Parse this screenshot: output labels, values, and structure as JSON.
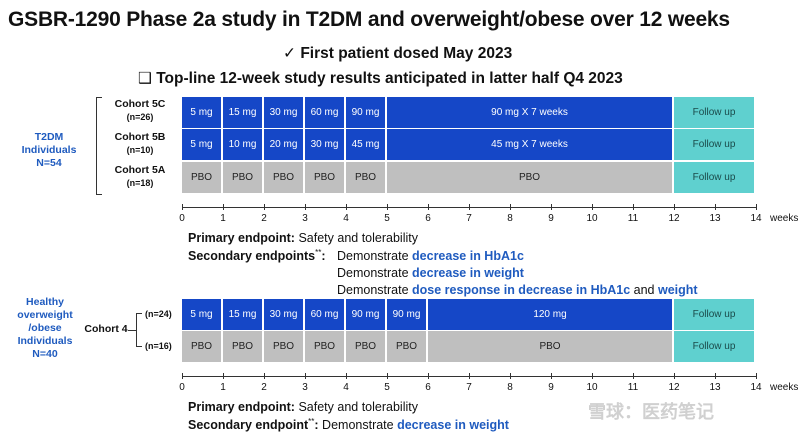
{
  "title": "GSBR-1290 Phase 2a study in T2DM and overweight/obese over 12 weeks",
  "bullet1": {
    "mark": "✓",
    "text": "First patient dosed May 2023"
  },
  "bullet2": {
    "mark": "❑",
    "text": "Top-line 12-week study results anticipated in latter half Q4 2023"
  },
  "t2dm": {
    "label": "T2DM Individuals N=54",
    "cohorts": [
      {
        "name": "Cohort 5C",
        "n": "(n=26)",
        "cells": [
          "5 mg",
          "15 mg",
          "30 mg",
          "60 mg",
          "90 mg",
          "90 mg X 7 weeks",
          "Follow up"
        ]
      },
      {
        "name": "Cohort 5B",
        "n": "(n=10)",
        "cells": [
          "5 mg",
          "10 mg",
          "20 mg",
          "30 mg",
          "45 mg",
          "45 mg X 7 weeks",
          "Follow up"
        ]
      },
      {
        "name": "Cohort 5A",
        "n": "(n=18)",
        "cells": [
          "PBO",
          "PBO",
          "PBO",
          "PBO",
          "PBO",
          "PBO",
          "Follow up"
        ]
      }
    ],
    "primary_label": "Primary endpoint:",
    "primary_text": "Safety and tolerability",
    "secondary_label": "Secondary endpoints",
    "secondary_mark": "**",
    "secondary_items": [
      {
        "prefix": "Demonstrate ",
        "highlight": "decrease in HbA1c"
      },
      {
        "prefix": "Demonstrate ",
        "highlight": "decrease in weight"
      },
      {
        "prefix": "Demonstrate ",
        "highlight": "dose response in decrease in HbA1c",
        "mid": "and",
        "highlight2": "weight"
      }
    ]
  },
  "healthy": {
    "label": "Healthy overweight /obese Individuals N=40",
    "cohort_name": "Cohort 4",
    "rows": [
      {
        "n": "(n=24)",
        "cells": [
          "5 mg",
          "15 mg",
          "30 mg",
          "60 mg",
          "90 mg",
          "90 mg",
          "120 mg",
          "Follow up"
        ]
      },
      {
        "n": "(n=16)",
        "cells": [
          "PBO",
          "PBO",
          "PBO",
          "PBO",
          "PBO",
          "PBO",
          "PBO",
          "Follow up"
        ]
      }
    ],
    "primary_label": "Primary endpoint:",
    "primary_text": "Safety and tolerability",
    "secondary_label": "Secondary endpoint",
    "secondary_mark": "**",
    "secondary_prefix": "Demonstrate ",
    "secondary_highlight": "decrease in weight"
  },
  "axis": {
    "ticks": [
      "0",
      "1",
      "2",
      "3",
      "4",
      "5",
      "6",
      "7",
      "8",
      "9",
      "10",
      "11",
      "12",
      "13",
      "14"
    ],
    "unit": "weeks"
  },
  "watermark": "雪球：医药笔记",
  "colors": {
    "dose": "#1547c7",
    "placebo": "#bfbfbf",
    "followup": "#5fd0cf",
    "highlight": "#1f5bbf"
  }
}
